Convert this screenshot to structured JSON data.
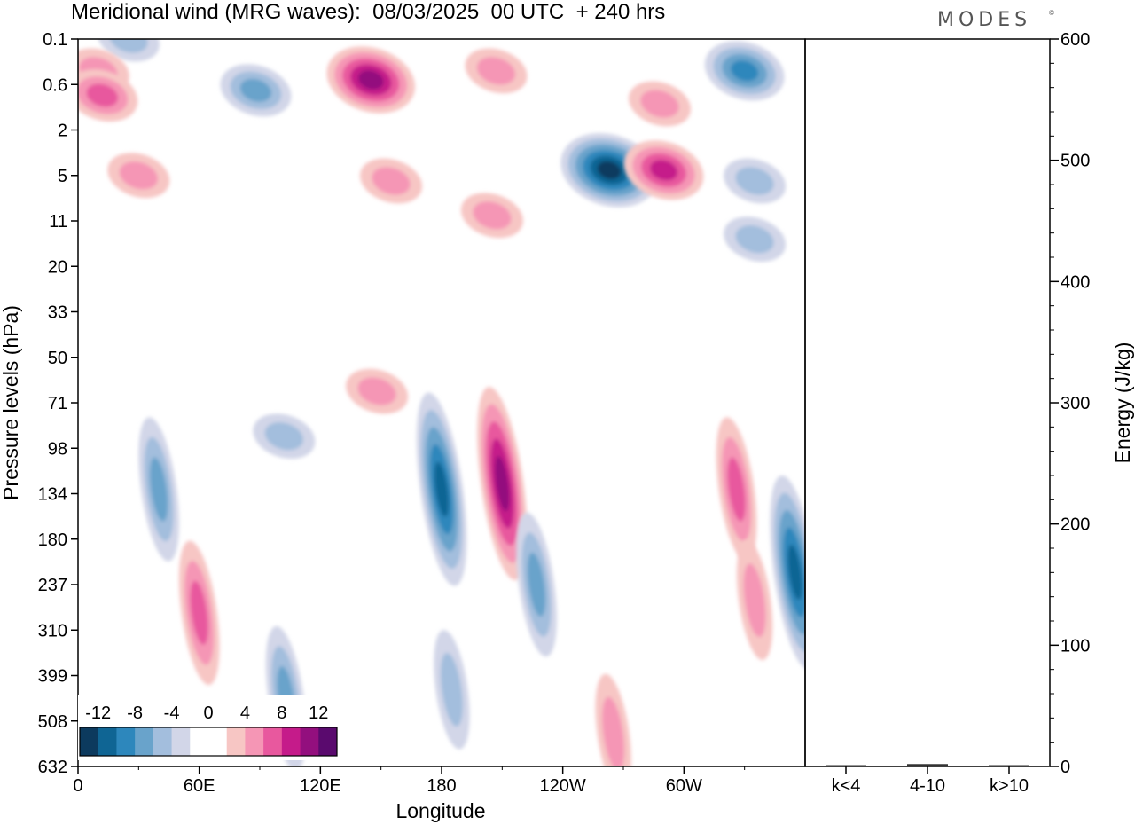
{
  "header": {
    "title": "Meridional wind (MRG waves):  08/03/2025  00 UTC  + 240 hrs",
    "brand": "MODES",
    "brand_mark": "©"
  },
  "colors": {
    "negative": [
      "#0c3a5e",
      "#0f6594",
      "#2d87bc",
      "#69a3cb",
      "#a3bedd",
      "#d2d6e8"
    ],
    "positive": [
      "#f7c6c4",
      "#f596b5",
      "#e8589e",
      "#c51b8a",
      "#930f7e",
      "#5a0a6e"
    ]
  },
  "chart_data": [
    {
      "type": "heatmap",
      "title": "Meridional wind (MRG waves):  08/03/2025  00 UTC  + 240 hrs",
      "xlabel": "Longitude",
      "ylabel": "Pressure levels (hPa)",
      "x_ticks": [
        "0",
        "60E",
        "120E",
        "180",
        "120W",
        "60W"
      ],
      "x_range_deg": [
        0,
        360
      ],
      "y_ticks": [
        "0.1",
        "0.6",
        "2",
        "5",
        "11",
        "20",
        "33",
        "50",
        "71",
        "98",
        "134",
        "180",
        "237",
        "310",
        "399",
        "508",
        "632"
      ],
      "y_scale": "log",
      "colorbar": {
        "labels": [
          "-12",
          "-8",
          "-4",
          "0",
          "4",
          "8",
          "12"
        ],
        "levels": [
          -14,
          -12,
          -10,
          -8,
          -6,
          -4,
          -2,
          2,
          4,
          6,
          8,
          10,
          12,
          14
        ]
      },
      "features": [
        {
          "lon": 25,
          "p": 0.1,
          "value": -5
        },
        {
          "lon": 10,
          "p": 0.35,
          "value": 5
        },
        {
          "lon": 12,
          "p": 0.8,
          "value": 6
        },
        {
          "lon": 88,
          "p": 0.7,
          "value": -7
        },
        {
          "lon": 145,
          "p": 0.5,
          "value": 10
        },
        {
          "lon": 207,
          "p": 0.35,
          "value": 5
        },
        {
          "lon": 263,
          "p": 4.5,
          "value": -14
        },
        {
          "lon": 290,
          "p": 4.5,
          "value": 8
        },
        {
          "lon": 288,
          "p": 1.0,
          "value": 5
        },
        {
          "lon": 330,
          "p": 0.35,
          "value": -8
        },
        {
          "lon": 155,
          "p": 5.5,
          "value": 4
        },
        {
          "lon": 205,
          "p": 10,
          "value": 4
        },
        {
          "lon": 30,
          "p": 5,
          "value": 4
        },
        {
          "lon": 335,
          "p": 5.5,
          "value": -5
        },
        {
          "lon": 335,
          "p": 14,
          "value": -4
        },
        {
          "lon": 148,
          "p": 65,
          "value": 5
        },
        {
          "lon": 102,
          "p": 90,
          "value": -5
        },
        {
          "lon": 180,
          "p": 130,
          "value": -10
        },
        {
          "lon": 210,
          "p": 125,
          "value": 10
        },
        {
          "lon": 40,
          "p": 130,
          "value": -6
        },
        {
          "lon": 60,
          "p": 280,
          "value": 7
        },
        {
          "lon": 355,
          "p": 220,
          "value": -10
        },
        {
          "lon": 326,
          "p": 130,
          "value": 6
        },
        {
          "lon": 227,
          "p": 237,
          "value": -7
        },
        {
          "lon": 103,
          "p": 450,
          "value": -6
        },
        {
          "lon": 185,
          "p": 430,
          "value": -5
        },
        {
          "lon": 265,
          "p": 540,
          "value": 4
        },
        {
          "lon": 335,
          "p": 260,
          "value": 5
        }
      ]
    },
    {
      "type": "bar",
      "categories": [
        "k<4",
        "4-10",
        "k>10"
      ],
      "values": [
        0.5,
        2,
        0.3
      ],
      "ylabel": "Energy (J/kg)",
      "ylim": [
        0,
        600
      ],
      "y_ticks": [
        "0",
        "100",
        "200",
        "300",
        "400",
        "500",
        "600"
      ]
    }
  ]
}
